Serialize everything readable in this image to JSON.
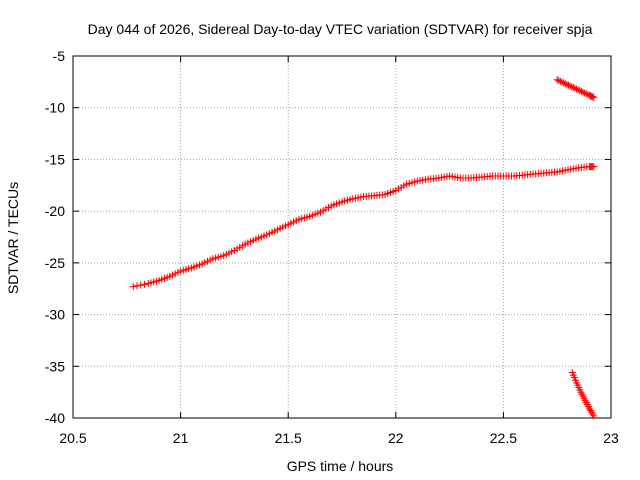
{
  "chart_data": {
    "type": "scatter",
    "title": "Day 044 of 2026, Sidereal Day-to-day VTEC variation (SDTVAR) for receiver spja",
    "xlabel": "GPS time / hours",
    "ylabel": "SDTVAR / TECUs",
    "xlim": [
      20.5,
      23
    ],
    "ylim": [
      -40,
      -5
    ],
    "x_ticks": [
      "20.5",
      "21",
      "21.5",
      "22",
      "22.5",
      "23"
    ],
    "y_ticks": [
      "-5",
      "-10",
      "-15",
      "-20",
      "-25",
      "-30",
      "-35",
      "-40"
    ],
    "grid": true,
    "marker": "plus",
    "color": "#ff0000",
    "series": [
      {
        "points": [
          [
            20.78,
            -27.3
          ],
          [
            20.85,
            -27.0
          ],
          [
            20.9,
            -26.7
          ],
          [
            20.95,
            -26.3
          ],
          [
            21.0,
            -25.8
          ],
          [
            21.05,
            -25.5
          ],
          [
            21.1,
            -25.1
          ],
          [
            21.15,
            -24.6
          ],
          [
            21.2,
            -24.3
          ],
          [
            21.25,
            -23.8
          ],
          [
            21.3,
            -23.2
          ],
          [
            21.35,
            -22.7
          ],
          [
            21.4,
            -22.3
          ],
          [
            21.45,
            -21.8
          ],
          [
            21.5,
            -21.3
          ],
          [
            21.55,
            -20.8
          ],
          [
            21.6,
            -20.5
          ],
          [
            21.65,
            -20.1
          ],
          [
            21.7,
            -19.5
          ],
          [
            21.75,
            -19.1
          ],
          [
            21.8,
            -18.8
          ],
          [
            21.85,
            -18.6
          ],
          [
            21.9,
            -18.5
          ],
          [
            21.95,
            -18.4
          ],
          [
            22.0,
            -18.0
          ],
          [
            22.05,
            -17.4
          ],
          [
            22.1,
            -17.1
          ],
          [
            22.15,
            -16.9
          ],
          [
            22.2,
            -16.8
          ],
          [
            22.25,
            -16.6
          ],
          [
            22.3,
            -16.8
          ],
          [
            22.35,
            -16.8
          ],
          [
            22.4,
            -16.7
          ],
          [
            22.45,
            -16.6
          ],
          [
            22.5,
            -16.6
          ],
          [
            22.55,
            -16.6
          ],
          [
            22.6,
            -16.5
          ],
          [
            22.65,
            -16.4
          ],
          [
            22.7,
            -16.3
          ],
          [
            22.75,
            -16.2
          ],
          [
            22.8,
            -16.0
          ],
          [
            22.85,
            -15.8
          ],
          [
            22.9,
            -15.7
          ],
          [
            22.92,
            -15.7
          ]
        ]
      },
      {
        "points": [
          [
            22.75,
            -7.3
          ],
          [
            22.78,
            -7.6
          ],
          [
            22.81,
            -7.9
          ],
          [
            22.84,
            -8.2
          ],
          [
            22.87,
            -8.5
          ],
          [
            22.9,
            -8.8
          ],
          [
            22.92,
            -9.0
          ]
        ]
      },
      {
        "points": [
          [
            22.82,
            -35.6
          ],
          [
            22.84,
            -36.6
          ],
          [
            22.86,
            -37.5
          ],
          [
            22.88,
            -38.3
          ],
          [
            22.9,
            -39.1
          ],
          [
            22.92,
            -39.8
          ]
        ]
      }
    ]
  }
}
